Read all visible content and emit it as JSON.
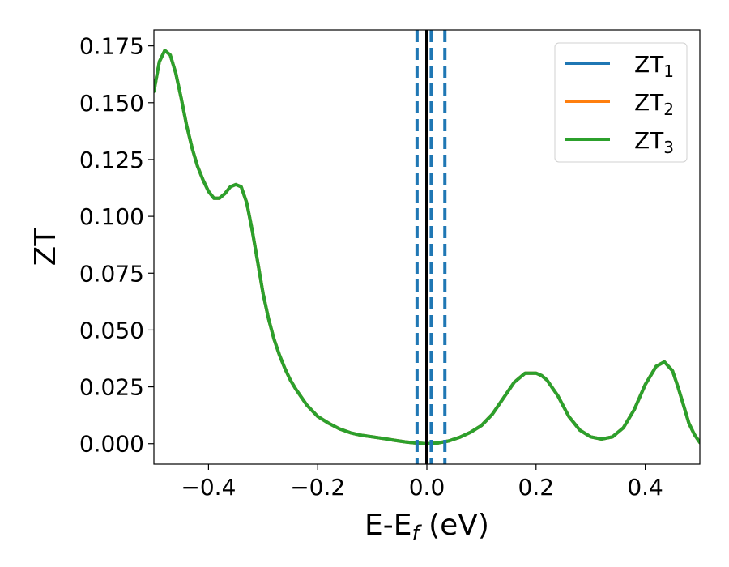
{
  "chart_data": {
    "type": "line",
    "title": "",
    "xlabel": {
      "main": "E-E",
      "sub": "f",
      "suffix": " (eV)"
    },
    "ylabel": "ZT",
    "xlim": [
      -0.5,
      0.5
    ],
    "ylim": [
      -0.009,
      0.182
    ],
    "xticks": [
      -0.4,
      -0.2,
      0.0,
      0.2,
      0.4
    ],
    "xtick_labels": [
      "−0.4",
      "−0.2",
      "0.0",
      "0.2",
      "0.4"
    ],
    "yticks": [
      0.0,
      0.025,
      0.05,
      0.075,
      0.1,
      0.125,
      0.15,
      0.175
    ],
    "ytick_labels": [
      "0.000",
      "0.025",
      "0.050",
      "0.075",
      "0.100",
      "0.125",
      "0.150",
      "0.175"
    ],
    "grid": false,
    "legend_position": "top-right",
    "series": [
      {
        "name": "ZT",
        "sub": "1",
        "color": "#1f77b4",
        "x": [
          -0.5,
          -0.49,
          -0.48,
          -0.47,
          -0.46,
          -0.45,
          -0.44,
          -0.43,
          -0.42,
          -0.41,
          -0.4,
          -0.39,
          -0.38,
          -0.37,
          -0.36,
          -0.35,
          -0.34,
          -0.33,
          -0.32,
          -0.31,
          -0.3,
          -0.29,
          -0.28,
          -0.27,
          -0.26,
          -0.25,
          -0.24,
          -0.22,
          -0.2,
          -0.18,
          -0.16,
          -0.14,
          -0.12,
          -0.1,
          -0.08,
          -0.06,
          -0.04,
          -0.02,
          0.0,
          0.02,
          0.04,
          0.06,
          0.08,
          0.1,
          0.12,
          0.14,
          0.16,
          0.18,
          0.2,
          0.21,
          0.22,
          0.24,
          0.26,
          0.28,
          0.3,
          0.32,
          0.34,
          0.36,
          0.38,
          0.4,
          0.42,
          0.435,
          0.45,
          0.46,
          0.47,
          0.48,
          0.49,
          0.5
        ],
        "y": [
          0.155,
          0.168,
          0.173,
          0.171,
          0.163,
          0.152,
          0.14,
          0.13,
          0.122,
          0.116,
          0.111,
          0.108,
          0.108,
          0.11,
          0.113,
          0.114,
          0.113,
          0.106,
          0.094,
          0.08,
          0.066,
          0.055,
          0.046,
          0.039,
          0.033,
          0.028,
          0.024,
          0.017,
          0.012,
          0.009,
          0.0065,
          0.0048,
          0.0037,
          0.003,
          0.0023,
          0.0015,
          0.0008,
          0.0003,
          0.0,
          0.0003,
          0.0012,
          0.0028,
          0.005,
          0.008,
          0.013,
          0.02,
          0.027,
          0.031,
          0.031,
          0.03,
          0.028,
          0.021,
          0.012,
          0.006,
          0.003,
          0.002,
          0.003,
          0.007,
          0.015,
          0.026,
          0.034,
          0.036,
          0.032,
          0.025,
          0.017,
          0.009,
          0.004,
          0.0005
        ]
      },
      {
        "name": "ZT",
        "sub": "2",
        "color": "#ff7f0e",
        "x": [
          -0.5,
          -0.49,
          -0.48,
          -0.47,
          -0.46,
          -0.45,
          -0.44,
          -0.43,
          -0.42,
          -0.41,
          -0.4,
          -0.39,
          -0.38,
          -0.37,
          -0.36,
          -0.35,
          -0.34,
          -0.33,
          -0.32,
          -0.31,
          -0.3,
          -0.29,
          -0.28,
          -0.27,
          -0.26,
          -0.25,
          -0.24,
          -0.22,
          -0.2,
          -0.18,
          -0.16,
          -0.14,
          -0.12,
          -0.1,
          -0.08,
          -0.06,
          -0.04,
          -0.02,
          0.0,
          0.02,
          0.04,
          0.06,
          0.08,
          0.1,
          0.12,
          0.14,
          0.16,
          0.18,
          0.2,
          0.21,
          0.22,
          0.24,
          0.26,
          0.28,
          0.3,
          0.32,
          0.34,
          0.36,
          0.38,
          0.4,
          0.42,
          0.435,
          0.45,
          0.46,
          0.47,
          0.48,
          0.49,
          0.5
        ],
        "y": [
          0.155,
          0.168,
          0.173,
          0.171,
          0.163,
          0.152,
          0.14,
          0.13,
          0.122,
          0.116,
          0.111,
          0.108,
          0.108,
          0.11,
          0.113,
          0.114,
          0.113,
          0.106,
          0.094,
          0.08,
          0.066,
          0.055,
          0.046,
          0.039,
          0.033,
          0.028,
          0.024,
          0.017,
          0.012,
          0.009,
          0.0065,
          0.0048,
          0.0037,
          0.003,
          0.0023,
          0.0015,
          0.0008,
          0.0003,
          0.0,
          0.0003,
          0.0012,
          0.0028,
          0.005,
          0.008,
          0.013,
          0.02,
          0.027,
          0.031,
          0.031,
          0.03,
          0.028,
          0.021,
          0.012,
          0.006,
          0.003,
          0.002,
          0.003,
          0.007,
          0.015,
          0.026,
          0.034,
          0.036,
          0.032,
          0.025,
          0.017,
          0.009,
          0.004,
          0.0005
        ]
      },
      {
        "name": "ZT",
        "sub": "3",
        "color": "#2ca02c",
        "x": [
          -0.5,
          -0.49,
          -0.48,
          -0.47,
          -0.46,
          -0.45,
          -0.44,
          -0.43,
          -0.42,
          -0.41,
          -0.4,
          -0.39,
          -0.38,
          -0.37,
          -0.36,
          -0.35,
          -0.34,
          -0.33,
          -0.32,
          -0.31,
          -0.3,
          -0.29,
          -0.28,
          -0.27,
          -0.26,
          -0.25,
          -0.24,
          -0.22,
          -0.2,
          -0.18,
          -0.16,
          -0.14,
          -0.12,
          -0.1,
          -0.08,
          -0.06,
          -0.04,
          -0.02,
          0.0,
          0.02,
          0.04,
          0.06,
          0.08,
          0.1,
          0.12,
          0.14,
          0.16,
          0.18,
          0.2,
          0.21,
          0.22,
          0.24,
          0.26,
          0.28,
          0.3,
          0.32,
          0.34,
          0.36,
          0.38,
          0.4,
          0.42,
          0.435,
          0.45,
          0.46,
          0.47,
          0.48,
          0.49,
          0.5
        ],
        "y": [
          0.155,
          0.168,
          0.173,
          0.171,
          0.163,
          0.152,
          0.14,
          0.13,
          0.122,
          0.116,
          0.111,
          0.108,
          0.108,
          0.11,
          0.113,
          0.114,
          0.113,
          0.106,
          0.094,
          0.08,
          0.066,
          0.055,
          0.046,
          0.039,
          0.033,
          0.028,
          0.024,
          0.017,
          0.012,
          0.009,
          0.0065,
          0.0048,
          0.0037,
          0.003,
          0.0023,
          0.0015,
          0.0008,
          0.0003,
          0.0,
          0.0003,
          0.0012,
          0.0028,
          0.005,
          0.008,
          0.013,
          0.02,
          0.027,
          0.031,
          0.031,
          0.03,
          0.028,
          0.021,
          0.012,
          0.006,
          0.003,
          0.002,
          0.003,
          0.007,
          0.015,
          0.026,
          0.034,
          0.036,
          0.032,
          0.025,
          0.017,
          0.009,
          0.004,
          0.0005
        ]
      }
    ],
    "vertical_lines": [
      {
        "x": 0.0,
        "style": "solid",
        "color": "#000000"
      },
      {
        "x": -0.018,
        "style": "dashed",
        "color": "#1f77b4"
      },
      {
        "x": 0.008,
        "style": "dashed",
        "color": "#1f77b4"
      },
      {
        "x": 0.033,
        "style": "dashed",
        "color": "#1f77b4"
      }
    ]
  }
}
